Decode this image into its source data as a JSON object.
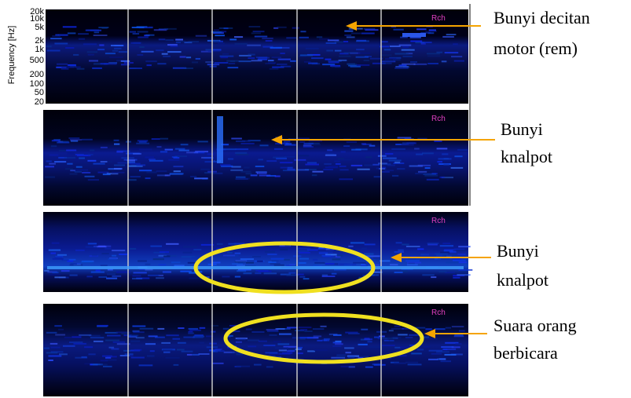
{
  "y_axis": {
    "label": "Frequency [Hz]",
    "ticks": [
      "20k",
      "10k",
      "5k",
      "2k",
      "1k",
      "500",
      "200",
      "100",
      "50",
      "20"
    ]
  },
  "panels": [
    {
      "channel": "Rch"
    },
    {
      "channel": "Rch"
    },
    {
      "channel": "Rch"
    },
    {
      "channel": "Rch"
    }
  ],
  "annotations": [
    {
      "lines": [
        "Bunyi decitan",
        "motor (rem)"
      ]
    },
    {
      "lines": [
        "Bunyi",
        "knalpot"
      ]
    },
    {
      "lines": [
        "Bunyi",
        "knalpot"
      ]
    },
    {
      "lines": [
        "Suara orang",
        "berbicara"
      ]
    }
  ]
}
